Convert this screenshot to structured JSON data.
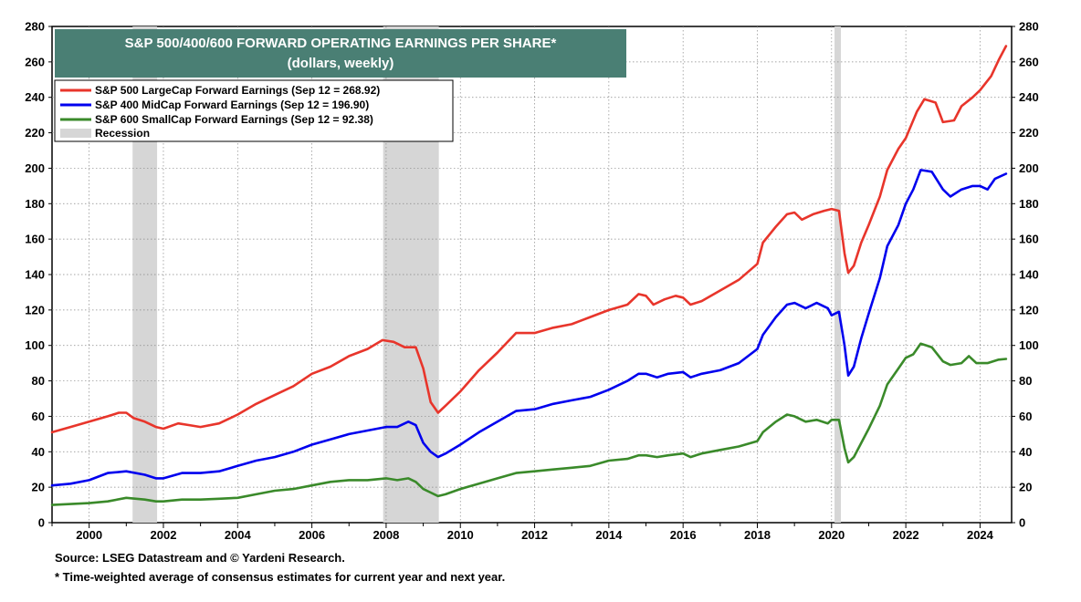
{
  "chart_data": {
    "type": "line",
    "title": "S&P 500/400/600 FORWARD OPERATING EARNINGS PER SHARE*",
    "subtitle": "(dollars, weekly)",
    "title_bg": "#4a7f74",
    "ylim": [
      0,
      280
    ],
    "yticks": [
      0,
      20,
      40,
      60,
      80,
      100,
      120,
      140,
      160,
      180,
      200,
      220,
      240,
      260,
      280
    ],
    "xlim": [
      1999.0,
      2024.85
    ],
    "xticks": [
      2000,
      2002,
      2004,
      2006,
      2008,
      2010,
      2012,
      2014,
      2016,
      2018,
      2020,
      2022,
      2024
    ],
    "grid": true,
    "legend_position": "top-left",
    "recession_label": "Recession",
    "recession_color": "#d6d6d6",
    "recessions": [
      [
        2001.17,
        2001.83
      ],
      [
        2007.92,
        2009.42
      ],
      [
        2020.08,
        2020.25
      ]
    ],
    "series": [
      {
        "name": "S&P 500 LargeCap Forward Earnings (Sep 12 = 268.92)",
        "color": "#e8352b",
        "points": [
          [
            1999.0,
            51
          ],
          [
            1999.5,
            54
          ],
          [
            2000.0,
            57
          ],
          [
            2000.5,
            60
          ],
          [
            2000.8,
            62
          ],
          [
            2001.0,
            62
          ],
          [
            2001.2,
            59
          ],
          [
            2001.5,
            57
          ],
          [
            2001.8,
            54
          ],
          [
            2002.0,
            53
          ],
          [
            2002.4,
            56
          ],
          [
            2002.7,
            55
          ],
          [
            2003.0,
            54
          ],
          [
            2003.5,
            56
          ],
          [
            2004.0,
            61
          ],
          [
            2004.5,
            67
          ],
          [
            2005.0,
            72
          ],
          [
            2005.5,
            77
          ],
          [
            2006.0,
            84
          ],
          [
            2006.5,
            88
          ],
          [
            2007.0,
            94
          ],
          [
            2007.5,
            98
          ],
          [
            2007.9,
            103
          ],
          [
            2008.2,
            102
          ],
          [
            2008.5,
            99
          ],
          [
            2008.8,
            99
          ],
          [
            2009.0,
            87
          ],
          [
            2009.2,
            68
          ],
          [
            2009.4,
            62
          ],
          [
            2009.6,
            66
          ],
          [
            2010.0,
            74
          ],
          [
            2010.5,
            86
          ],
          [
            2011.0,
            96
          ],
          [
            2011.5,
            107
          ],
          [
            2012.0,
            107
          ],
          [
            2012.5,
            110
          ],
          [
            2013.0,
            112
          ],
          [
            2013.5,
            116
          ],
          [
            2014.0,
            120
          ],
          [
            2014.5,
            123
          ],
          [
            2014.8,
            129
          ],
          [
            2015.0,
            128
          ],
          [
            2015.2,
            123
          ],
          [
            2015.5,
            126
          ],
          [
            2015.8,
            128
          ],
          [
            2016.0,
            127
          ],
          [
            2016.2,
            123
          ],
          [
            2016.5,
            125
          ],
          [
            2017.0,
            131
          ],
          [
            2017.5,
            137
          ],
          [
            2018.0,
            146
          ],
          [
            2018.15,
            158
          ],
          [
            2018.5,
            167
          ],
          [
            2018.8,
            174
          ],
          [
            2019.0,
            175
          ],
          [
            2019.2,
            171
          ],
          [
            2019.5,
            174
          ],
          [
            2019.8,
            176
          ],
          [
            2020.0,
            177
          ],
          [
            2020.2,
            176
          ],
          [
            2020.35,
            152
          ],
          [
            2020.45,
            141
          ],
          [
            2020.6,
            145
          ],
          [
            2020.8,
            158
          ],
          [
            2021.0,
            168
          ],
          [
            2021.3,
            184
          ],
          [
            2021.5,
            199
          ],
          [
            2021.8,
            211
          ],
          [
            2022.0,
            217
          ],
          [
            2022.3,
            232
          ],
          [
            2022.5,
            239
          ],
          [
            2022.8,
            237
          ],
          [
            2023.0,
            226
          ],
          [
            2023.3,
            227
          ],
          [
            2023.5,
            235
          ],
          [
            2023.8,
            240
          ],
          [
            2024.0,
            244
          ],
          [
            2024.3,
            252
          ],
          [
            2024.5,
            261
          ],
          [
            2024.7,
            268.92
          ]
        ]
      },
      {
        "name": "S&P 400 MidCap Forward Earnings (Sep 12 = 196.90)",
        "color": "#0000ee",
        "points": [
          [
            1999.0,
            21
          ],
          [
            1999.5,
            22
          ],
          [
            2000.0,
            24
          ],
          [
            2000.5,
            28
          ],
          [
            2001.0,
            29
          ],
          [
            2001.5,
            27
          ],
          [
            2001.8,
            25
          ],
          [
            2002.0,
            25
          ],
          [
            2002.5,
            28
          ],
          [
            2003.0,
            28
          ],
          [
            2003.5,
            29
          ],
          [
            2004.0,
            32
          ],
          [
            2004.5,
            35
          ],
          [
            2005.0,
            37
          ],
          [
            2005.5,
            40
          ],
          [
            2006.0,
            44
          ],
          [
            2006.5,
            47
          ],
          [
            2007.0,
            50
          ],
          [
            2007.5,
            52
          ],
          [
            2008.0,
            54
          ],
          [
            2008.3,
            54
          ],
          [
            2008.6,
            57
          ],
          [
            2008.8,
            55
          ],
          [
            2009.0,
            45
          ],
          [
            2009.2,
            40
          ],
          [
            2009.4,
            37
          ],
          [
            2009.6,
            39
          ],
          [
            2010.0,
            44
          ],
          [
            2010.5,
            51
          ],
          [
            2011.0,
            57
          ],
          [
            2011.5,
            63
          ],
          [
            2012.0,
            64
          ],
          [
            2012.5,
            67
          ],
          [
            2013.0,
            69
          ],
          [
            2013.5,
            71
          ],
          [
            2014.0,
            75
          ],
          [
            2014.5,
            80
          ],
          [
            2014.8,
            84
          ],
          [
            2015.0,
            84
          ],
          [
            2015.3,
            82
          ],
          [
            2015.6,
            84
          ],
          [
            2016.0,
            85
          ],
          [
            2016.2,
            82
          ],
          [
            2016.5,
            84
          ],
          [
            2017.0,
            86
          ],
          [
            2017.5,
            90
          ],
          [
            2018.0,
            98
          ],
          [
            2018.15,
            106
          ],
          [
            2018.5,
            116
          ],
          [
            2018.8,
            123
          ],
          [
            2019.0,
            124
          ],
          [
            2019.3,
            121
          ],
          [
            2019.6,
            124
          ],
          [
            2019.9,
            121
          ],
          [
            2020.0,
            117
          ],
          [
            2020.2,
            119
          ],
          [
            2020.35,
            100
          ],
          [
            2020.45,
            83
          ],
          [
            2020.6,
            88
          ],
          [
            2020.8,
            104
          ],
          [
            2021.0,
            118
          ],
          [
            2021.3,
            138
          ],
          [
            2021.5,
            156
          ],
          [
            2021.8,
            168
          ],
          [
            2022.0,
            180
          ],
          [
            2022.2,
            188
          ],
          [
            2022.4,
            199
          ],
          [
            2022.7,
            198
          ],
          [
            2023.0,
            188
          ],
          [
            2023.2,
            184
          ],
          [
            2023.5,
            188
          ],
          [
            2023.8,
            190
          ],
          [
            2024.0,
            190
          ],
          [
            2024.2,
            188
          ],
          [
            2024.4,
            194
          ],
          [
            2024.7,
            196.9
          ]
        ]
      },
      {
        "name": "S&P 600 SmallCap Forward Earnings (Sep 12 = 92.38)",
        "color": "#3a8a2a",
        "points": [
          [
            1999.0,
            10
          ],
          [
            1999.5,
            10.5
          ],
          [
            2000.0,
            11
          ],
          [
            2000.5,
            12
          ],
          [
            2001.0,
            14
          ],
          [
            2001.5,
            13
          ],
          [
            2001.8,
            12
          ],
          [
            2002.0,
            12
          ],
          [
            2002.5,
            13
          ],
          [
            2003.0,
            13
          ],
          [
            2003.5,
            13.5
          ],
          [
            2004.0,
            14
          ],
          [
            2004.5,
            16
          ],
          [
            2005.0,
            18
          ],
          [
            2005.5,
            19
          ],
          [
            2006.0,
            21
          ],
          [
            2006.5,
            23
          ],
          [
            2007.0,
            24
          ],
          [
            2007.5,
            24
          ],
          [
            2008.0,
            25
          ],
          [
            2008.3,
            24
          ],
          [
            2008.6,
            25
          ],
          [
            2008.8,
            23
          ],
          [
            2009.0,
            19
          ],
          [
            2009.2,
            17
          ],
          [
            2009.4,
            15
          ],
          [
            2009.6,
            16
          ],
          [
            2010.0,
            19
          ],
          [
            2010.5,
            22
          ],
          [
            2011.0,
            25
          ],
          [
            2011.5,
            28
          ],
          [
            2012.0,
            29
          ],
          [
            2012.5,
            30
          ],
          [
            2013.0,
            31
          ],
          [
            2013.5,
            32
          ],
          [
            2014.0,
            35
          ],
          [
            2014.5,
            36
          ],
          [
            2014.8,
            38
          ],
          [
            2015.0,
            38
          ],
          [
            2015.3,
            37
          ],
          [
            2015.6,
            38
          ],
          [
            2016.0,
            39
          ],
          [
            2016.2,
            37
          ],
          [
            2016.5,
            39
          ],
          [
            2017.0,
            41
          ],
          [
            2017.5,
            43
          ],
          [
            2018.0,
            46
          ],
          [
            2018.15,
            51
          ],
          [
            2018.5,
            57
          ],
          [
            2018.8,
            61
          ],
          [
            2019.0,
            60
          ],
          [
            2019.3,
            57
          ],
          [
            2019.6,
            58
          ],
          [
            2019.9,
            56
          ],
          [
            2020.0,
            58
          ],
          [
            2020.2,
            58
          ],
          [
            2020.35,
            42
          ],
          [
            2020.45,
            34
          ],
          [
            2020.6,
            37
          ],
          [
            2020.8,
            45
          ],
          [
            2021.0,
            53
          ],
          [
            2021.3,
            66
          ],
          [
            2021.5,
            78
          ],
          [
            2021.8,
            87
          ],
          [
            2022.0,
            93
          ],
          [
            2022.2,
            95
          ],
          [
            2022.4,
            101
          ],
          [
            2022.7,
            99
          ],
          [
            2023.0,
            91
          ],
          [
            2023.2,
            89
          ],
          [
            2023.5,
            90
          ],
          [
            2023.7,
            94
          ],
          [
            2023.9,
            90
          ],
          [
            2024.2,
            90
          ],
          [
            2024.5,
            92
          ],
          [
            2024.7,
            92.38
          ]
        ]
      }
    ]
  },
  "source": "Source: LSEG Datastream and © Yardeni Research.",
  "footnote": "* Time-weighted average of consensus estimates for current year and next year."
}
